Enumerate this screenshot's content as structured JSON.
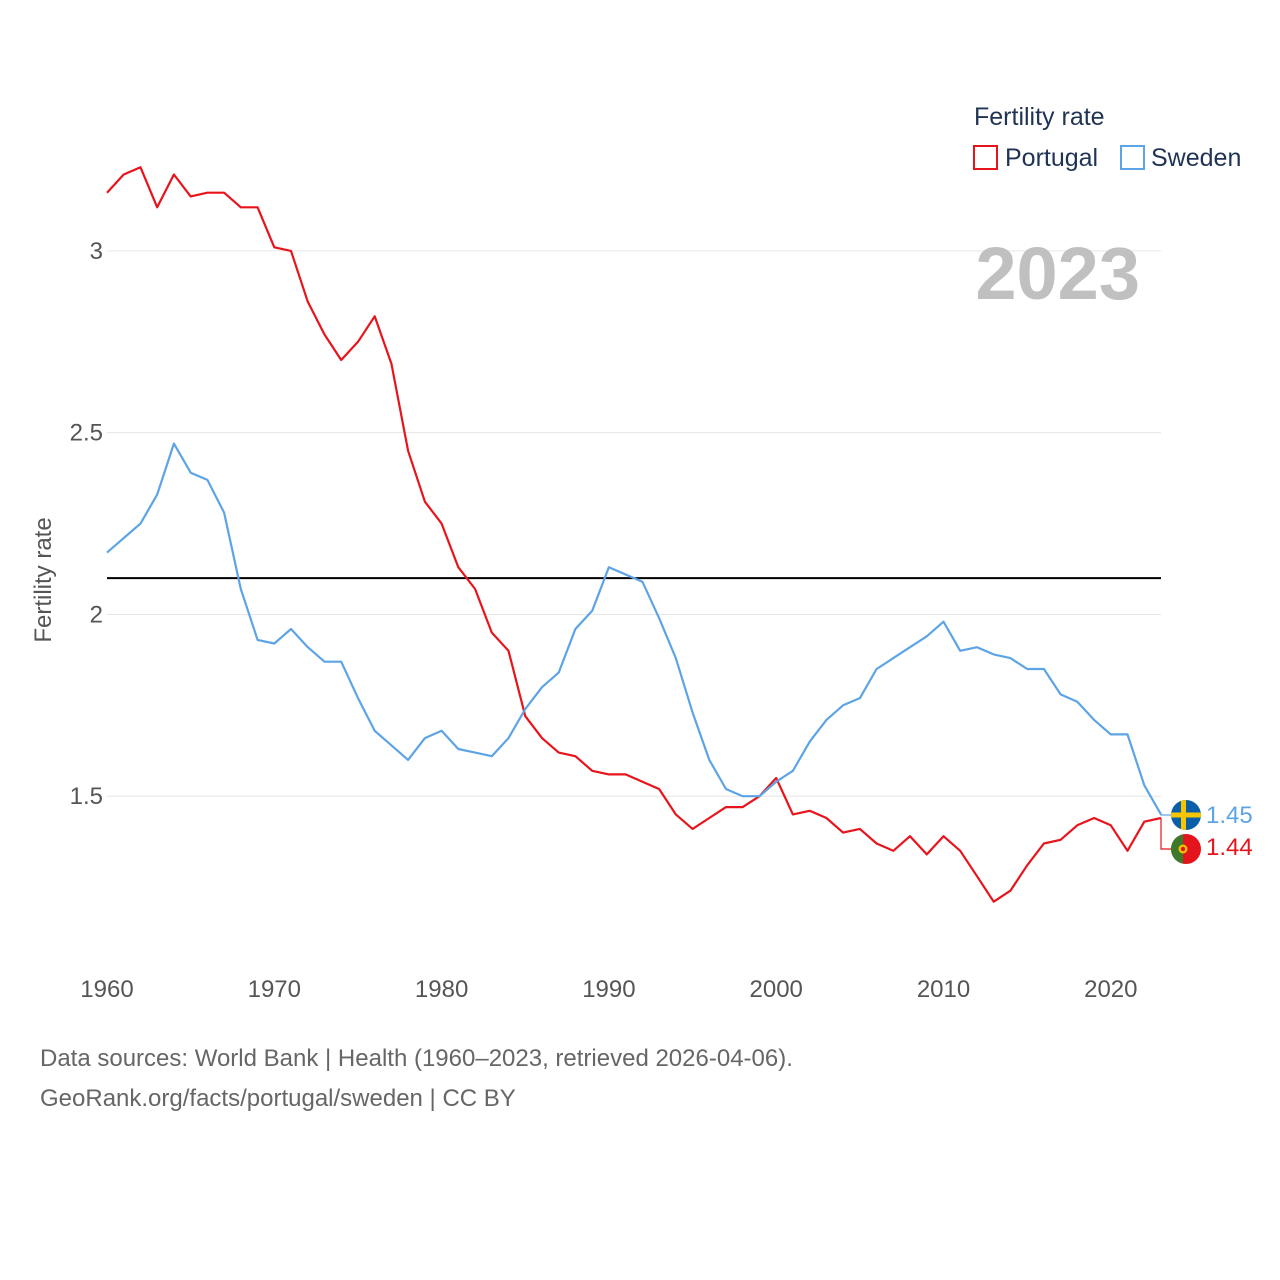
{
  "chart_data": {
    "type": "line",
    "ylabel": "Fertility rate",
    "xlabel": "",
    "xlim": [
      1960,
      2023
    ],
    "ylim": [
      1.0,
      3.25
    ],
    "yticks": [
      1.5,
      2,
      2.5,
      3
    ],
    "ytick_labels": [
      "1.5",
      "2",
      "2.5",
      "3"
    ],
    "xticks": [
      1960,
      1970,
      1980,
      1990,
      2000,
      2010,
      2020
    ],
    "xtick_labels": [
      "1960",
      "1970",
      "1980",
      "1990",
      "2000",
      "2010",
      "2020"
    ],
    "reference_line": 2.1,
    "legend_title": "Fertility rate",
    "legend_position": "top-right",
    "year_label": "2023",
    "grid": true,
    "x": [
      1960,
      1961,
      1962,
      1963,
      1964,
      1965,
      1966,
      1967,
      1968,
      1969,
      1970,
      1971,
      1972,
      1973,
      1974,
      1975,
      1976,
      1977,
      1978,
      1979,
      1980,
      1981,
      1982,
      1983,
      1984,
      1985,
      1986,
      1987,
      1988,
      1989,
      1990,
      1991,
      1992,
      1993,
      1994,
      1995,
      1996,
      1997,
      1998,
      1999,
      2000,
      2001,
      2002,
      2003,
      2004,
      2005,
      2006,
      2007,
      2008,
      2009,
      2010,
      2011,
      2012,
      2013,
      2014,
      2015,
      2016,
      2017,
      2018,
      2019,
      2020,
      2021,
      2022,
      2023
    ],
    "series": [
      {
        "name": "Portugal",
        "color": "#e8141c",
        "end_label": "1.44",
        "flag": "portugal-flag",
        "values": [
          3.16,
          3.21,
          3.23,
          3.12,
          3.21,
          3.15,
          3.16,
          3.16,
          3.12,
          3.12,
          3.01,
          3.0,
          2.86,
          2.77,
          2.7,
          2.75,
          2.82,
          2.69,
          2.45,
          2.31,
          2.25,
          2.13,
          2.07,
          1.95,
          1.9,
          1.72,
          1.66,
          1.62,
          1.61,
          1.57,
          1.56,
          1.56,
          1.54,
          1.52,
          1.45,
          1.41,
          1.44,
          1.47,
          1.47,
          1.5,
          1.55,
          1.45,
          1.46,
          1.44,
          1.4,
          1.41,
          1.37,
          1.35,
          1.39,
          1.34,
          1.39,
          1.35,
          1.28,
          1.21,
          1.24,
          1.31,
          1.37,
          1.38,
          1.42,
          1.44,
          1.42,
          1.35,
          1.43,
          1.44
        ]
      },
      {
        "name": "Sweden",
        "color": "#5da4e6",
        "end_label": "1.45",
        "flag": "sweden-flag",
        "values": [
          2.17,
          2.21,
          2.25,
          2.33,
          2.47,
          2.39,
          2.37,
          2.28,
          2.07,
          1.93,
          1.92,
          1.96,
          1.91,
          1.87,
          1.87,
          1.77,
          1.68,
          1.64,
          1.6,
          1.66,
          1.68,
          1.63,
          1.62,
          1.61,
          1.66,
          1.74,
          1.8,
          1.84,
          1.96,
          2.01,
          2.13,
          2.11,
          2.09,
          1.99,
          1.88,
          1.73,
          1.6,
          1.52,
          1.5,
          1.5,
          1.54,
          1.57,
          1.65,
          1.71,
          1.75,
          1.77,
          1.85,
          1.88,
          1.91,
          1.94,
          1.98,
          1.9,
          1.91,
          1.89,
          1.88,
          1.85,
          1.85,
          1.78,
          1.76,
          1.71,
          1.67,
          1.67,
          1.53,
          1.45
        ]
      }
    ]
  },
  "footer": {
    "line1": "Data sources: World Bank | Health (1960–2023, retrieved 2026-04-06).",
    "line2": "GeoRank.org/facts/portugal/sweden | CC BY"
  }
}
